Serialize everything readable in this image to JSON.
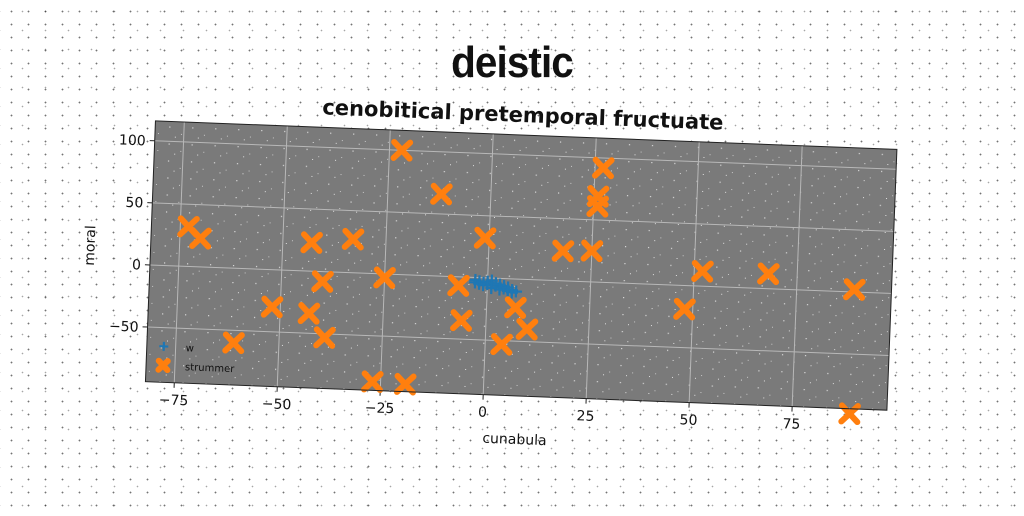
{
  "header": {
    "title": "deistic"
  },
  "chart_data": {
    "type": "scatter",
    "title": "cenobitical pretemporal fructuate",
    "xlabel": "cunabula",
    "ylabel": "moral",
    "xlim": [
      -82,
      98
    ],
    "ylim": [
      -94,
      116
    ],
    "xticks": [
      -75,
      -50,
      -25,
      0,
      25,
      50,
      75
    ],
    "xtick_labels": [
      "−75",
      "−50",
      "−25",
      "0",
      "25",
      "50",
      "75"
    ],
    "yticks": [
      -50,
      0,
      50,
      100
    ],
    "ytick_labels": [
      "−50",
      "0",
      "50",
      "100"
    ],
    "grid": true,
    "legend": "lower-left",
    "series": [
      {
        "name": "w",
        "color": "#1f77b4",
        "marker": "plus",
        "points": [
          [
            -3,
            -2
          ],
          [
            -2,
            -3
          ],
          [
            -1,
            -4
          ],
          [
            0,
            -5
          ],
          [
            1,
            -6
          ],
          [
            2,
            -6
          ],
          [
            3,
            -7
          ],
          [
            4,
            -8
          ],
          [
            5,
            -9
          ],
          [
            6,
            -9
          ],
          [
            -3,
            -4
          ],
          [
            -1,
            -6
          ],
          [
            1,
            -8
          ],
          [
            3,
            -9
          ],
          [
            5,
            -10
          ],
          [
            0,
            -3
          ],
          [
            2,
            -4
          ],
          [
            4,
            -6
          ],
          [
            -2,
            -5
          ],
          [
            6,
            -11
          ],
          [
            7,
            -10
          ],
          [
            1,
            -2
          ],
          [
            3,
            -5
          ],
          [
            5,
            -7
          ]
        ]
      },
      {
        "name": "strummer",
        "color": "#ff7f0e",
        "marker": "x",
        "points": [
          [
            -73,
            32
          ],
          [
            -70,
            23
          ],
          [
            -61,
            -60
          ],
          [
            -52,
            -30
          ],
          [
            -43,
            -34
          ],
          [
            -43,
            23
          ],
          [
            -40,
            -8
          ],
          [
            -39,
            -53
          ],
          [
            -33,
            27
          ],
          [
            -25,
            -3
          ],
          [
            -22,
            100
          ],
          [
            -27,
            -87
          ],
          [
            -19,
            -88
          ],
          [
            -12,
            66
          ],
          [
            -7,
            -7
          ],
          [
            -6,
            -35
          ],
          [
            -1,
            32
          ],
          [
            4,
            -53
          ],
          [
            7,
            -23
          ],
          [
            10,
            -40
          ],
          [
            18,
            24
          ],
          [
            25,
            25
          ],
          [
            26,
            61
          ],
          [
            27,
            92
          ],
          [
            26,
            69
          ],
          [
            48,
            -19
          ],
          [
            52,
            12
          ],
          [
            68,
            12
          ],
          [
            89,
            2
          ],
          [
            89,
            -98
          ]
        ]
      }
    ]
  }
}
